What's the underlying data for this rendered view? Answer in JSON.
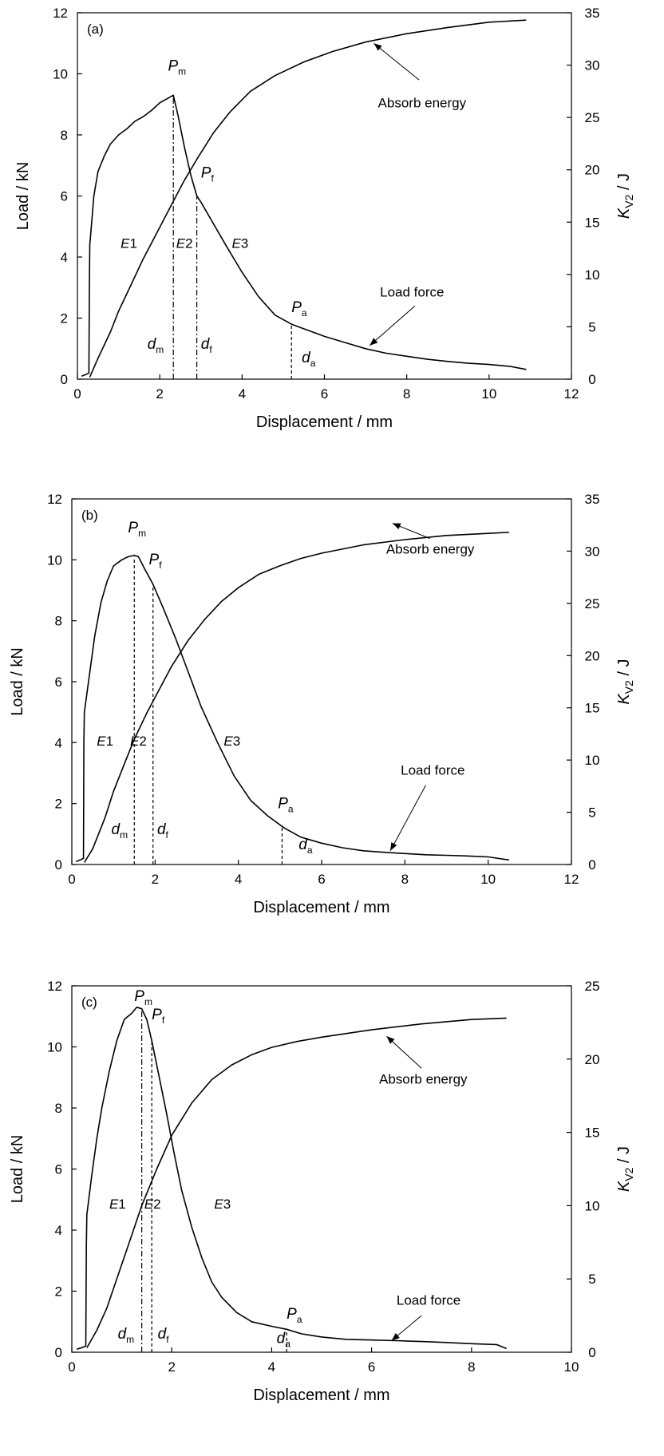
{
  "chart_data": [
    {
      "type": "line",
      "panel_label": "(a)",
      "xlabel": "Displacement / mm",
      "ylabel": "Load / kN",
      "y2label_main": "K",
      "y2label_sub": "V2",
      "y2label_unit": " / J",
      "xlim": [
        0,
        12
      ],
      "ylim": [
        0,
        12
      ],
      "y2lim": [
        0,
        35
      ],
      "xticks": [
        "0",
        "2",
        "4",
        "6",
        "8",
        "10",
        "12"
      ],
      "yticks": [
        "0",
        "2",
        "4",
        "6",
        "8",
        "10",
        "12"
      ],
      "y2ticks": [
        "0",
        "5",
        "10",
        "15",
        "20",
        "25",
        "30",
        "35"
      ],
      "series": [
        {
          "name": "Load force",
          "axis": "left",
          "points": [
            [
              0.1,
              0.1
            ],
            [
              0.2,
              0.15
            ],
            [
              0.28,
              0.2
            ],
            [
              0.29,
              3.0
            ],
            [
              0.3,
              4.4
            ],
            [
              0.35,
              5.2
            ],
            [
              0.4,
              6.0
            ],
            [
              0.5,
              6.8
            ],
            [
              0.65,
              7.3
            ],
            [
              0.8,
              7.7
            ],
            [
              1.0,
              8.0
            ],
            [
              1.2,
              8.2
            ],
            [
              1.4,
              8.45
            ],
            [
              1.6,
              8.6
            ],
            [
              1.8,
              8.8
            ],
            [
              2.0,
              9.05
            ],
            [
              2.2,
              9.2
            ],
            [
              2.33,
              9.3
            ],
            [
              2.45,
              8.6
            ],
            [
              2.6,
              7.6
            ],
            [
              2.75,
              6.7
            ],
            [
              2.9,
              6.0
            ],
            [
              3.0,
              5.8
            ],
            [
              3.3,
              5.1
            ],
            [
              3.6,
              4.4
            ],
            [
              4.0,
              3.5
            ],
            [
              4.4,
              2.7
            ],
            [
              4.8,
              2.1
            ],
            [
              5.2,
              1.8
            ],
            [
              5.6,
              1.6
            ],
            [
              6.0,
              1.4
            ],
            [
              6.5,
              1.2
            ],
            [
              7.0,
              1.0
            ],
            [
              7.5,
              0.85
            ],
            [
              8.0,
              0.75
            ],
            [
              8.5,
              0.65
            ],
            [
              9.0,
              0.58
            ],
            [
              9.5,
              0.52
            ],
            [
              10.0,
              0.48
            ],
            [
              10.5,
              0.42
            ],
            [
              10.9,
              0.32
            ]
          ]
        },
        {
          "name": "Absorb energy",
          "axis": "right",
          "points": [
            [
              0.3,
              0.2
            ],
            [
              0.5,
              2.0
            ],
            [
              0.8,
              4.5
            ],
            [
              1.0,
              6.5
            ],
            [
              1.3,
              9.0
            ],
            [
              1.6,
              11.5
            ],
            [
              2.0,
              14.5
            ],
            [
              2.33,
              17.0
            ],
            [
              2.6,
              19.0
            ],
            [
              2.9,
              21.0
            ],
            [
              3.3,
              23.5
            ],
            [
              3.7,
              25.5
            ],
            [
              4.2,
              27.5
            ],
            [
              4.8,
              29.0
            ],
            [
              5.5,
              30.3
            ],
            [
              6.2,
              31.3
            ],
            [
              7.0,
              32.2
            ],
            [
              8.0,
              33.0
            ],
            [
              9.0,
              33.6
            ],
            [
              10.0,
              34.1
            ],
            [
              10.9,
              34.3
            ]
          ]
        }
      ],
      "vlines": [
        {
          "x": 2.33,
          "ytop": 9.3,
          "style": "dashdot"
        },
        {
          "x": 2.9,
          "ytop": 6.0,
          "style": "dashdot"
        },
        {
          "x": 5.2,
          "ytop": 1.8,
          "style": "dash"
        }
      ],
      "annotations": {
        "Pm": {
          "x": 2.2,
          "y": 10.1,
          "main": "P",
          "sub": "m"
        },
        "Pf": {
          "x": 3.0,
          "y": 6.6,
          "main": "P",
          "sub": "f"
        },
        "Pa": {
          "x": 5.2,
          "y": 2.2,
          "main": "P",
          "sub": "a"
        },
        "E1": {
          "x": 1.05,
          "y": 4.3,
          "text": "E1"
        },
        "E2": {
          "x": 2.4,
          "y": 4.3,
          "text": "E2"
        },
        "E3": {
          "x": 3.75,
          "y": 4.3,
          "text": "E3"
        },
        "dm": {
          "x": 1.7,
          "y": 1.0,
          "main": "d",
          "sub": "m"
        },
        "df": {
          "x": 3.0,
          "y": 1.0,
          "main": "d",
          "sub": "f"
        },
        "da": {
          "x": 5.45,
          "y": 0.55,
          "main": "d",
          "sub": "a"
        }
      },
      "labels": [
        {
          "text": "Absorb energy",
          "x": 7.3,
          "y": 8.9,
          "ax": 8.3,
          "ay": 9.8,
          "hx": 7.2,
          "hy": 11.0
        },
        {
          "text": "Load force",
          "x": 7.35,
          "y": 2.7,
          "ax": 8.2,
          "ay": 2.4,
          "hx": 7.1,
          "hy": 1.1
        }
      ]
    },
    {
      "type": "line",
      "panel_label": "(b)",
      "xlabel": "Displacement / mm",
      "ylabel": "Load / kN",
      "y2label_main": "K",
      "y2label_sub": "V2",
      "y2label_unit": " / J",
      "xlim": [
        0,
        12
      ],
      "ylim": [
        0,
        12
      ],
      "y2lim": [
        0,
        35
      ],
      "xticks": [
        "0",
        "2",
        "4",
        "6",
        "8",
        "10",
        "12"
      ],
      "yticks": [
        "0",
        "2",
        "4",
        "6",
        "8",
        "10",
        "12"
      ],
      "y2ticks": [
        "0",
        "5",
        "10",
        "15",
        "20",
        "25",
        "30",
        "35"
      ],
      "series": [
        {
          "name": "Load force",
          "axis": "left",
          "points": [
            [
              0.1,
              0.1
            ],
            [
              0.2,
              0.15
            ],
            [
              0.28,
              0.2
            ],
            [
              0.29,
              4.0
            ],
            [
              0.3,
              5.0
            ],
            [
              0.4,
              6.0
            ],
            [
              0.55,
              7.5
            ],
            [
              0.7,
              8.6
            ],
            [
              0.85,
              9.3
            ],
            [
              1.0,
              9.8
            ],
            [
              1.2,
              10.0
            ],
            [
              1.35,
              10.1
            ],
            [
              1.5,
              10.15
            ],
            [
              1.6,
              10.1
            ],
            [
              1.75,
              9.7
            ],
            [
              1.95,
              9.2
            ],
            [
              2.2,
              8.4
            ],
            [
              2.5,
              7.4
            ],
            [
              2.8,
              6.3
            ],
            [
              3.1,
              5.2
            ],
            [
              3.5,
              4.0
            ],
            [
              3.9,
              2.9
            ],
            [
              4.3,
              2.1
            ],
            [
              4.7,
              1.6
            ],
            [
              5.1,
              1.2
            ],
            [
              5.5,
              0.9
            ],
            [
              6.0,
              0.7
            ],
            [
              6.5,
              0.55
            ],
            [
              7.0,
              0.45
            ],
            [
              7.5,
              0.4
            ],
            [
              8.0,
              0.36
            ],
            [
              8.5,
              0.32
            ],
            [
              9.0,
              0.3
            ],
            [
              9.5,
              0.28
            ],
            [
              10.0,
              0.25
            ],
            [
              10.5,
              0.15
            ]
          ]
        },
        {
          "name": "Absorb energy",
          "axis": "right",
          "points": [
            [
              0.3,
              0.2
            ],
            [
              0.5,
              1.5
            ],
            [
              0.8,
              4.5
            ],
            [
              1.0,
              7.0
            ],
            [
              1.3,
              10.0
            ],
            [
              1.5,
              12.0
            ],
            [
              1.8,
              14.5
            ],
            [
              2.0,
              16.0
            ],
            [
              2.4,
              19.0
            ],
            [
              2.8,
              21.5
            ],
            [
              3.2,
              23.5
            ],
            [
              3.6,
              25.2
            ],
            [
              4.0,
              26.5
            ],
            [
              4.5,
              27.8
            ],
            [
              5.0,
              28.6
            ],
            [
              5.5,
              29.3
            ],
            [
              6.0,
              29.8
            ],
            [
              7.0,
              30.6
            ],
            [
              8.0,
              31.1
            ],
            [
              9.0,
              31.5
            ],
            [
              10.0,
              31.7
            ],
            [
              10.5,
              31.8
            ]
          ]
        }
      ],
      "vlines": [
        {
          "x": 1.5,
          "ytop": 10.1,
          "style": "dash"
        },
        {
          "x": 1.95,
          "ytop": 9.2,
          "style": "dash"
        },
        {
          "x": 5.05,
          "ytop": 1.25,
          "style": "dash"
        }
      ],
      "annotations": {
        "Pm": {
          "x": 1.35,
          "y": 10.9,
          "main": "P",
          "sub": "m"
        },
        "Pf": {
          "x": 1.85,
          "y": 9.85,
          "main": "P",
          "sub": "f"
        },
        "Pa": {
          "x": 4.95,
          "y": 1.85,
          "main": "P",
          "sub": "a"
        },
        "E1": {
          "x": 0.6,
          "y": 3.9,
          "text": "E1"
        },
        "E2": {
          "x": 1.4,
          "y": 3.9,
          "text": "E2"
        },
        "E3": {
          "x": 3.65,
          "y": 3.9,
          "text": "E3"
        },
        "dm": {
          "x": 0.95,
          "y": 1.0,
          "main": "d",
          "sub": "m"
        },
        "df": {
          "x": 2.05,
          "y": 1.0,
          "main": "d",
          "sub": "f"
        },
        "da": {
          "x": 5.45,
          "y": 0.5,
          "main": "d",
          "sub": "a"
        }
      },
      "labels": [
        {
          "text": "Absorb energy",
          "x": 7.55,
          "y": 10.2,
          "ax": 8.6,
          "ay": 10.7,
          "hx": 7.7,
          "hy": 11.2
        },
        {
          "text": "Load force",
          "x": 7.9,
          "y": 2.95,
          "ax": 8.5,
          "ay": 2.6,
          "hx": 7.65,
          "hy": 0.45
        }
      ]
    },
    {
      "type": "line",
      "panel_label": "(c)",
      "xlabel": "Displacement / mm",
      "ylabel": "Load / kN",
      "y2label_main": "K",
      "y2label_sub": "V2",
      "y2label_unit": " / J",
      "xlim": [
        0,
        10
      ],
      "ylim": [
        0,
        12
      ],
      "y2lim": [
        0,
        25
      ],
      "xticks": [
        "0",
        "2",
        "4",
        "6",
        "8",
        "10"
      ],
      "yticks": [
        "0",
        "2",
        "4",
        "6",
        "8",
        "10",
        "12"
      ],
      "y2ticks": [
        "0",
        "5",
        "10",
        "15",
        "20",
        "25"
      ],
      "series": [
        {
          "name": "Load force",
          "axis": "left",
          "points": [
            [
              0.1,
              0.1
            ],
            [
              0.2,
              0.15
            ],
            [
              0.28,
              0.2
            ],
            [
              0.29,
              3.5
            ],
            [
              0.3,
              4.5
            ],
            [
              0.4,
              5.8
            ],
            [
              0.5,
              7.0
            ],
            [
              0.6,
              8.0
            ],
            [
              0.75,
              9.2
            ],
            [
              0.9,
              10.2
            ],
            [
              1.05,
              10.9
            ],
            [
              1.2,
              11.1
            ],
            [
              1.3,
              11.3
            ],
            [
              1.4,
              11.25
            ],
            [
              1.5,
              10.9
            ],
            [
              1.6,
              10.2
            ],
            [
              1.75,
              9.0
            ],
            [
              1.9,
              7.8
            ],
            [
              2.05,
              6.5
            ],
            [
              2.2,
              5.3
            ],
            [
              2.4,
              4.1
            ],
            [
              2.6,
              3.1
            ],
            [
              2.8,
              2.3
            ],
            [
              3.0,
              1.8
            ],
            [
              3.3,
              1.3
            ],
            [
              3.6,
              1.0
            ],
            [
              4.0,
              0.85
            ],
            [
              4.3,
              0.75
            ],
            [
              4.6,
              0.6
            ],
            [
              5.0,
              0.5
            ],
            [
              5.5,
              0.42
            ],
            [
              6.0,
              0.4
            ],
            [
              6.5,
              0.38
            ],
            [
              7.0,
              0.35
            ],
            [
              7.5,
              0.32
            ],
            [
              8.0,
              0.28
            ],
            [
              8.5,
              0.25
            ],
            [
              8.7,
              0.12
            ]
          ]
        },
        {
          "name": "Absorb energy",
          "axis": "right",
          "points": [
            [
              0.3,
              0.3
            ],
            [
              0.5,
              1.5
            ],
            [
              0.7,
              3.0
            ],
            [
              0.9,
              5.0
            ],
            [
              1.1,
              7.0
            ],
            [
              1.4,
              10.0
            ],
            [
              1.7,
              12.5
            ],
            [
              2.0,
              14.8
            ],
            [
              2.4,
              17.0
            ],
            [
              2.8,
              18.6
            ],
            [
              3.2,
              19.6
            ],
            [
              3.6,
              20.3
            ],
            [
              4.0,
              20.8
            ],
            [
              4.5,
              21.2
            ],
            [
              5.0,
              21.5
            ],
            [
              6.0,
              22.0
            ],
            [
              7.0,
              22.4
            ],
            [
              8.0,
              22.7
            ],
            [
              8.7,
              22.8
            ]
          ]
        }
      ],
      "vlines": [
        {
          "x": 1.4,
          "ytop": 11.25,
          "style": "dashdot"
        },
        {
          "x": 1.6,
          "ytop": 10.2,
          "style": "dash"
        },
        {
          "x": 4.3,
          "ytop": 0.75,
          "style": "dash"
        }
      ],
      "annotations": {
        "Pm": {
          "x": 1.25,
          "y": 11.5,
          "main": "P",
          "sub": "m"
        },
        "Pf": {
          "x": 1.6,
          "y": 10.9,
          "main": "P",
          "sub": "f"
        },
        "Pa": {
          "x": 4.3,
          "y": 1.1,
          "main": "P",
          "sub": "a"
        },
        "E1": {
          "x": 0.75,
          "y": 4.7,
          "text": "E1"
        },
        "E2": {
          "x": 1.45,
          "y": 4.7,
          "text": "E2"
        },
        "E3": {
          "x": 2.85,
          "y": 4.7,
          "text": "E3"
        },
        "dm": {
          "x": 0.92,
          "y": 0.45,
          "main": "d",
          "sub": "m"
        },
        "df": {
          "x": 1.72,
          "y": 0.45,
          "main": "d",
          "sub": "f"
        },
        "da": {
          "x": 4.1,
          "y": 0.3,
          "main": "d",
          "sub": "a"
        }
      },
      "labels": [
        {
          "text": "Absorb energy",
          "x": 6.15,
          "y": 8.8,
          "ax": 7.0,
          "ay": 9.3,
          "hx": 6.3,
          "hy": 10.35
        },
        {
          "text": "Load force",
          "x": 6.5,
          "y": 1.55,
          "ax": 7.0,
          "ay": 1.2,
          "hx": 6.4,
          "hy": 0.38
        }
      ]
    }
  ]
}
